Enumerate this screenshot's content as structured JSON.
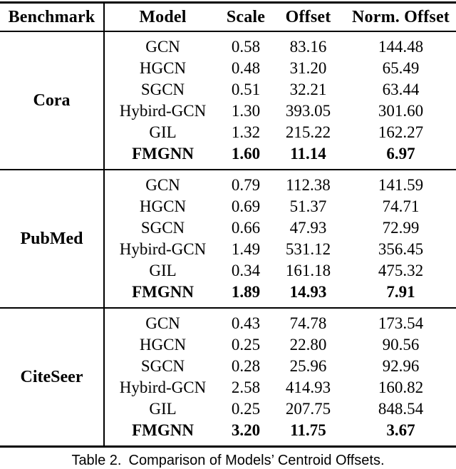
{
  "table": {
    "headers": {
      "benchmark": "Benchmark",
      "model": "Model",
      "scale": "Scale",
      "offset": "Offset",
      "norm_offset": "Norm. Offset"
    },
    "sections": [
      {
        "benchmark": "Cora",
        "rows": [
          {
            "model": "GCN",
            "scale": "0.58",
            "offset": "83.16",
            "norm_offset": "144.48"
          },
          {
            "model": "HGCN",
            "scale": "0.48",
            "offset": "31.20",
            "norm_offset": "65.49"
          },
          {
            "model": "SGCN",
            "scale": "0.51",
            "offset": "32.21",
            "norm_offset": "63.44"
          },
          {
            "model": "Hybird-GCN",
            "scale": "1.30",
            "offset": "393.05",
            "norm_offset": "301.60"
          },
          {
            "model": "GIL",
            "scale": "1.32",
            "offset": "215.22",
            "norm_offset": "162.27"
          },
          {
            "model": "FMGNN",
            "scale": "1.60",
            "offset": "11.14",
            "norm_offset": "6.97"
          }
        ]
      },
      {
        "benchmark": "PubMed",
        "rows": [
          {
            "model": "GCN",
            "scale": "0.79",
            "offset": "112.38",
            "norm_offset": "141.59"
          },
          {
            "model": "HGCN",
            "scale": "0.69",
            "offset": "51.37",
            "norm_offset": "74.71"
          },
          {
            "model": "SGCN",
            "scale": "0.66",
            "offset": "47.93",
            "norm_offset": "72.99"
          },
          {
            "model": "Hybird-GCN",
            "scale": "1.49",
            "offset": "531.12",
            "norm_offset": "356.45"
          },
          {
            "model": "GIL",
            "scale": "0.34",
            "offset": "161.18",
            "norm_offset": "475.32"
          },
          {
            "model": "FMGNN",
            "scale": "1.89",
            "offset": "14.93",
            "norm_offset": "7.91"
          }
        ]
      },
      {
        "benchmark": "CiteSeer",
        "rows": [
          {
            "model": "GCN",
            "scale": "0.43",
            "offset": "74.78",
            "norm_offset": "173.54"
          },
          {
            "model": "HGCN",
            "scale": "0.25",
            "offset": "22.80",
            "norm_offset": "90.56"
          },
          {
            "model": "SGCN",
            "scale": "0.28",
            "offset": "25.96",
            "norm_offset": "92.96"
          },
          {
            "model": "Hybird-GCN",
            "scale": "2.58",
            "offset": "414.93",
            "norm_offset": "160.82"
          },
          {
            "model": "GIL",
            "scale": "0.25",
            "offset": "207.75",
            "norm_offset": "848.54"
          },
          {
            "model": "FMGNN",
            "scale": "3.20",
            "offset": "11.75",
            "norm_offset": "3.67"
          }
        ]
      }
    ],
    "caption_label": "Table 2.",
    "caption_text": "Comparison of Models’ Centroid Offsets."
  }
}
